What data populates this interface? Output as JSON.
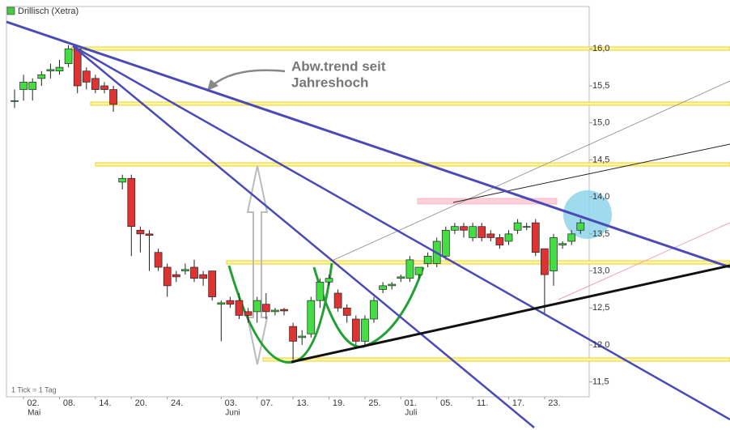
{
  "chart_data": {
    "type": "candlestick",
    "title": "Drillisch (Xetra)",
    "series_color": "#44cc44",
    "up_color": "#44dd44",
    "down_color": "#dd3333",
    "note": "1 Tick = 1 Tag",
    "annotations": [
      "Abw.trend seit",
      "Jahreshoch"
    ],
    "categories": [
      null,
      "02.",
      null,
      null,
      null,
      "08.",
      null,
      null,
      null,
      "14.",
      null,
      null,
      null,
      "20.",
      null,
      null,
      null,
      "24.",
      null,
      null,
      null,
      null,
      null,
      "03.",
      null,
      null,
      null,
      "07.",
      null,
      null,
      null,
      "13.",
      null,
      null,
      null,
      "19.",
      null,
      null,
      null,
      "25.",
      null,
      null,
      null,
      "01.",
      null,
      null,
      null,
      "05.",
      null,
      null,
      null,
      "11.",
      null,
      null,
      null,
      "17.",
      null,
      null,
      null,
      "23.",
      null,
      null,
      null,
      null
    ],
    "months": [
      null,
      "Mai",
      null,
      null,
      null,
      null,
      null,
      null,
      null,
      null,
      null,
      null,
      null,
      null,
      null,
      null,
      null,
      null,
      null,
      null,
      null,
      null,
      null,
      "Juni",
      null,
      null,
      null,
      null,
      null,
      null,
      null,
      null,
      null,
      null,
      null,
      null,
      null,
      null,
      null,
      null,
      null,
      null,
      null,
      "Juli",
      null,
      null,
      null,
      null,
      null,
      null,
      null,
      null,
      null,
      null,
      null,
      null,
      null,
      null,
      null,
      null,
      null,
      null,
      null,
      null
    ],
    "open": [
      15.3,
      15.45,
      15.45,
      15.6,
      15.7,
      15.7,
      15.8,
      16.0,
      15.7,
      15.6,
      15.5,
      15.45,
      14.2,
      14.25,
      13.55,
      13.5,
      13.25,
      13.05,
      12.95,
      13.0,
      13.05,
      12.95,
      13.0,
      12.55,
      12.6,
      12.6,
      12.45,
      12.45,
      12.55,
      12.45,
      12.48,
      12.25,
      12.1,
      12.15,
      12.6,
      12.85,
      12.7,
      12.5,
      12.35,
      12.05,
      12.35,
      12.75,
      12.8,
      12.9,
      12.9,
      12.95,
      13.1,
      13.1,
      13.2,
      13.55,
      13.6,
      13.45,
      13.6,
      13.5,
      13.45,
      13.4,
      13.55,
      13.6,
      13.65,
      13.3,
      13.0,
      13.35,
      13.4,
      13.55
    ],
    "high": [
      15.45,
      15.65,
      15.6,
      15.7,
      15.8,
      15.85,
      16.05,
      16.05,
      15.75,
      15.65,
      15.55,
      15.5,
      14.3,
      14.3,
      13.6,
      13.55,
      13.3,
      13.1,
      13.0,
      13.1,
      13.15,
      13.0,
      13.0,
      12.6,
      12.65,
      12.7,
      12.5,
      12.65,
      12.7,
      12.5,
      12.5,
      12.3,
      12.2,
      12.65,
      12.9,
      12.95,
      12.75,
      12.55,
      12.4,
      12.4,
      12.65,
      12.85,
      12.85,
      12.95,
      13.2,
      13.05,
      13.25,
      13.45,
      13.6,
      13.65,
      13.65,
      13.65,
      13.65,
      13.55,
      13.5,
      13.55,
      13.7,
      13.65,
      13.7,
      13.3,
      13.5,
      13.4,
      13.55,
      13.7
    ],
    "low": [
      15.2,
      15.3,
      15.3,
      15.5,
      15.6,
      15.65,
      15.75,
      15.4,
      15.45,
      15.4,
      15.4,
      15.15,
      14.1,
      13.2,
      13.25,
      13.0,
      13.0,
      12.65,
      12.85,
      12.95,
      12.85,
      12.8,
      12.6,
      12.05,
      12.5,
      12.35,
      12.3,
      12.3,
      12.35,
      12.4,
      12.4,
      11.8,
      12.0,
      12.1,
      12.5,
      12.8,
      12.45,
      12.3,
      12.0,
      12.0,
      12.3,
      12.7,
      12.75,
      12.85,
      12.85,
      12.9,
      13.05,
      13.05,
      13.15,
      13.5,
      13.45,
      13.4,
      13.4,
      13.4,
      13.3,
      13.35,
      13.5,
      13.55,
      13.2,
      12.4,
      12.8,
      13.3,
      13.35,
      13.5
    ],
    "close": [
      15.3,
      15.55,
      15.55,
      15.65,
      15.72,
      15.75,
      16.0,
      15.5,
      15.55,
      15.45,
      15.45,
      15.25,
      14.25,
      13.6,
      13.5,
      13.48,
      13.05,
      12.8,
      12.92,
      13.02,
      12.9,
      12.9,
      12.65,
      12.57,
      12.55,
      12.4,
      12.4,
      12.6,
      12.45,
      12.47,
      12.46,
      12.05,
      12.12,
      12.6,
      12.85,
      12.9,
      12.5,
      12.4,
      12.05,
      12.35,
      12.6,
      12.8,
      12.82,
      12.92,
      13.15,
      13.05,
      13.2,
      13.4,
      13.55,
      13.6,
      13.55,
      13.6,
      13.45,
      13.45,
      13.35,
      13.5,
      13.65,
      13.6,
      13.25,
      12.95,
      13.45,
      13.37,
      13.5,
      13.65
    ],
    "ylim": [
      11.3,
      16.55
    ],
    "yticks": [
      {
        "value": 11.5,
        "label": "11,5"
      },
      {
        "value": 12,
        "label": "12,0"
      },
      {
        "value": 12.5,
        "label": "12,5"
      },
      {
        "value": 13,
        "label": "13,0"
      },
      {
        "value": 13.5,
        "label": "13,5"
      },
      {
        "value": 14,
        "label": "14,0"
      },
      {
        "value": 14.5,
        "label": "14,5"
      },
      {
        "value": 15,
        "label": "15,0"
      },
      {
        "value": 15.5,
        "label": "15,5"
      },
      {
        "value": 16,
        "label": "16,0"
      }
    ],
    "grid": false
  }
}
